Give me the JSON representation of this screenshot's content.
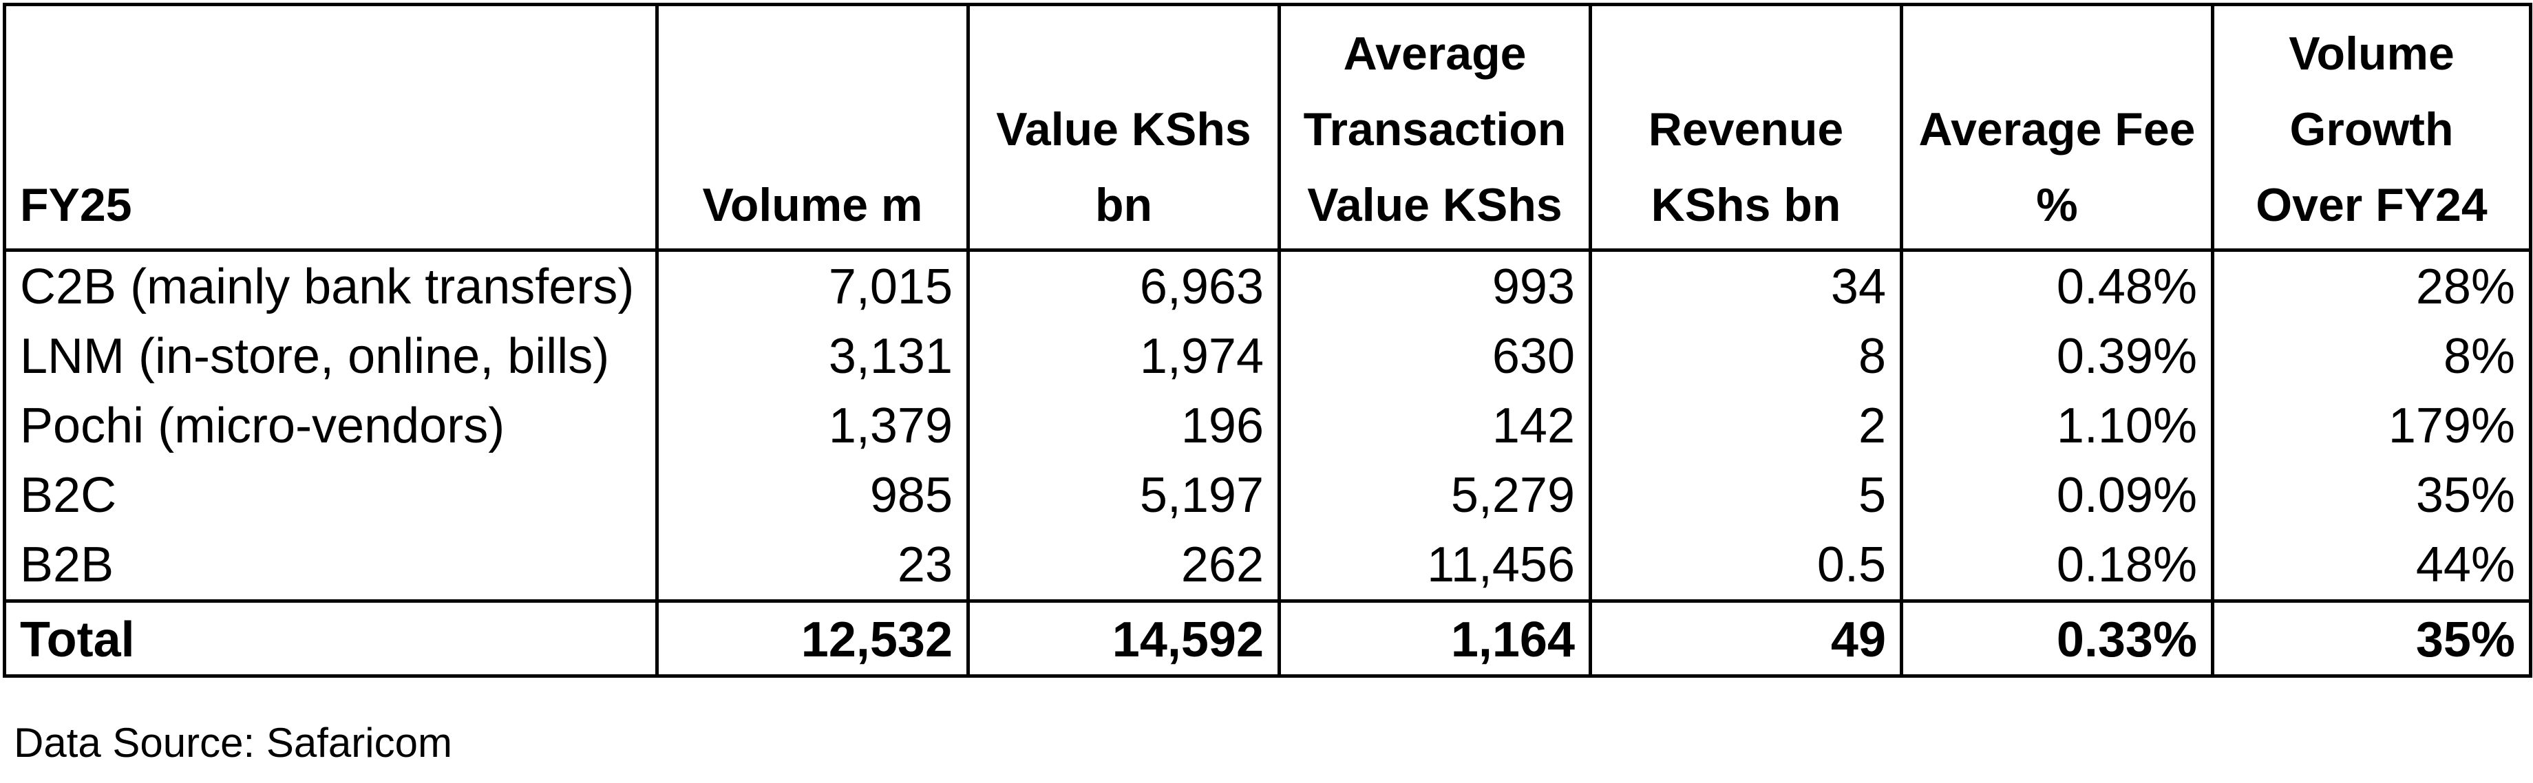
{
  "table": {
    "headers": [
      "FY25",
      "Volume m",
      "Value KShs bn",
      "Average Transaction Value KShs",
      "Revenue KShs bn",
      "Average Fee %",
      "Volume Growth Over FY24"
    ],
    "header_lines": [
      [
        "FY25"
      ],
      [
        "Volume m"
      ],
      [
        "Value KShs",
        "bn"
      ],
      [
        "Average",
        "Transaction",
        "Value KShs"
      ],
      [
        "Revenue",
        "KShs bn"
      ],
      [
        "Average Fee",
        "%"
      ],
      [
        "Volume",
        "Growth",
        "Over FY24"
      ]
    ],
    "rows": [
      [
        "C2B (mainly bank transfers)",
        "7,015",
        "6,963",
        "993",
        "34",
        "0.48%",
        "28%"
      ],
      [
        "LNM (in-store, online, bills)",
        "3,131",
        "1,974",
        "630",
        "8",
        "0.39%",
        "8%"
      ],
      [
        "Pochi (micro-vendors)",
        "1,379",
        "196",
        "142",
        "2",
        "1.10%",
        "179%"
      ],
      [
        "B2C",
        "985",
        "5,197",
        "5,279",
        "5",
        "0.09%",
        "35%"
      ],
      [
        "B2B",
        "23",
        "262",
        "11,456",
        "0.5",
        "0.18%",
        "44%"
      ]
    ],
    "total": [
      "Total",
      "12,532",
      "14,592",
      "1,164",
      "49",
      "0.33%",
      "35%"
    ]
  },
  "footer": {
    "source": "Data Source: Safaricom"
  }
}
